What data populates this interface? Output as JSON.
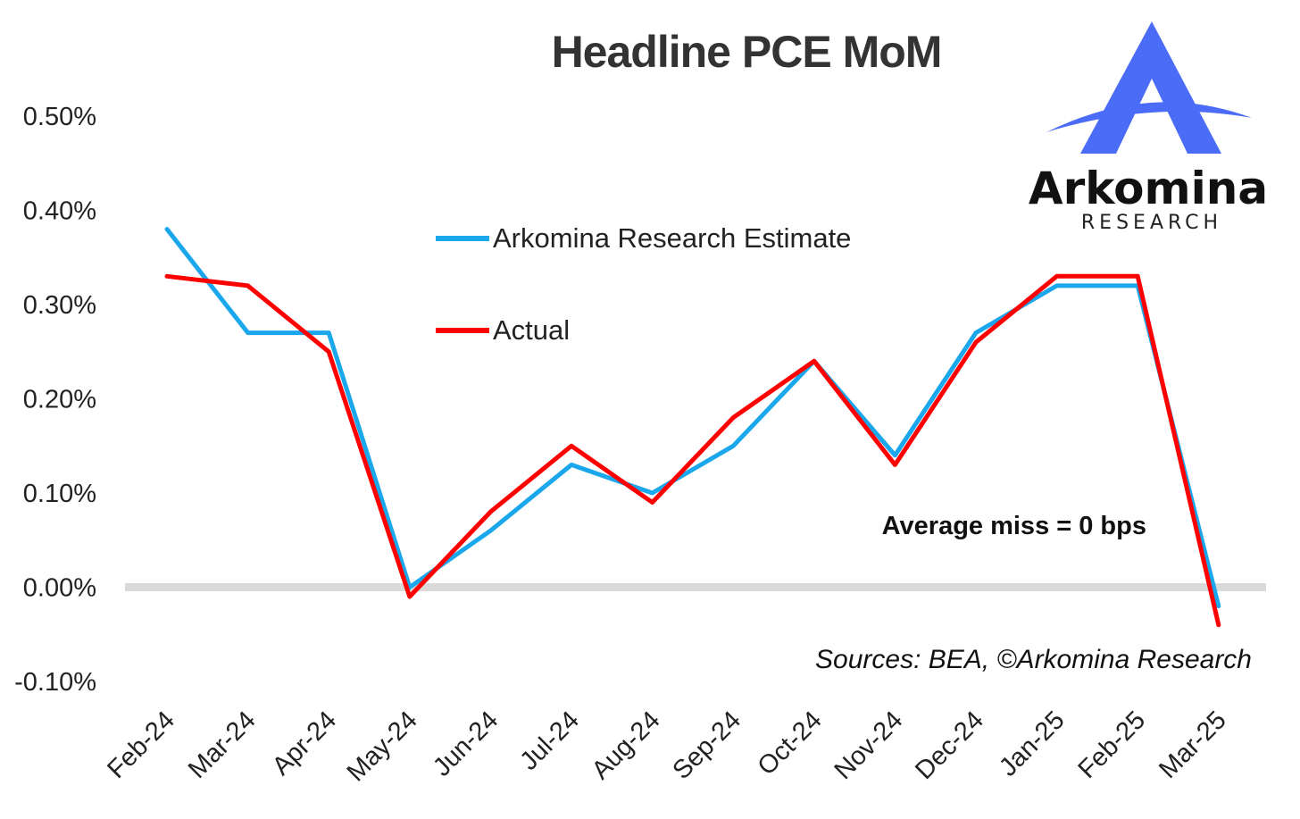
{
  "chart_data": {
    "type": "line",
    "title": "Headline PCE MoM",
    "categories": [
      "Feb-24",
      "Mar-24",
      "Apr-24",
      "May-24",
      "Jun-24",
      "Jul-24",
      "Aug-24",
      "Sep-24",
      "Oct-24",
      "Nov-24",
      "Dec-24",
      "Jan-25",
      "Feb-25",
      "Mar-25"
    ],
    "series": [
      {
        "name": "Arkomina Research Estimate",
        "color": "#1aa7ec",
        "values": [
          0.38,
          0.27,
          0.27,
          0.0,
          0.06,
          0.13,
          0.1,
          0.15,
          0.24,
          0.14,
          0.27,
          0.32,
          0.32,
          -0.02
        ]
      },
      {
        "name": "Actual",
        "color": "#ff0000",
        "values": [
          0.33,
          0.32,
          0.25,
          -0.01,
          0.08,
          0.15,
          0.09,
          0.18,
          0.24,
          0.13,
          0.26,
          0.33,
          0.33,
          -0.04
        ]
      }
    ],
    "yticks": [
      "0.50%",
      "0.40%",
      "0.30%",
      "0.20%",
      "0.10%",
      "0.00%",
      "-0.10%"
    ],
    "ylim": [
      -0.1,
      0.5
    ],
    "xlabel": "",
    "ylabel": "",
    "grid": false,
    "zero_line_color": "#d9d9d9",
    "annotation": "Average miss = 0 bps",
    "source": "Sources: BEA, ©Arkomina Research",
    "legend_position": "center-left"
  },
  "logo": {
    "name": "Arkomina",
    "subtitle": "RESEARCH",
    "mark_color": "#4a6cf7"
  }
}
